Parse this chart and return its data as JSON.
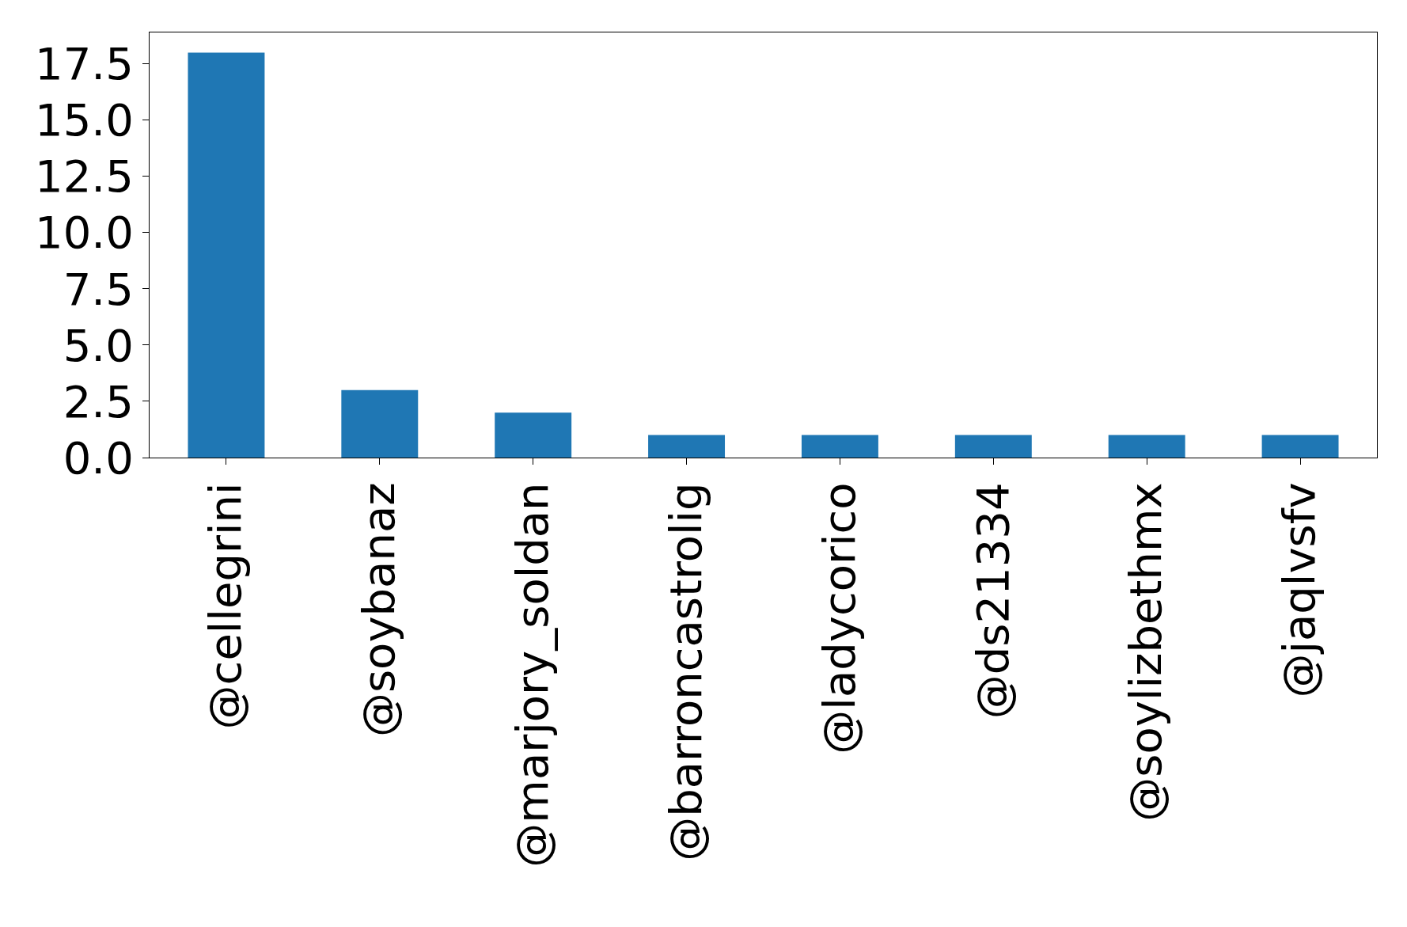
{
  "chart_data": {
    "type": "bar",
    "categories": [
      "@cellegrini",
      "@soybanaz",
      "@marjory_soldan",
      "@barroncastrolig",
      "@ladycorico",
      "@ds21334",
      "@soylizbethmx",
      "@jaqlvsfv"
    ],
    "values": [
      18,
      3,
      2,
      1,
      1,
      1,
      1,
      1
    ],
    "color": "#1f77b4",
    "ylim": [
      0,
      18.9
    ],
    "yticks": [
      {
        "value": 0,
        "label": "0.0"
      },
      {
        "value": 2.5,
        "label": "2.5"
      },
      {
        "value": 5,
        "label": "5.0"
      },
      {
        "value": 7.5,
        "label": "7.5"
      },
      {
        "value": 10,
        "label": "10.0"
      },
      {
        "value": 12.5,
        "label": "12.5"
      },
      {
        "value": 15,
        "label": "15.0"
      },
      {
        "value": 17.5,
        "label": "17.5"
      }
    ],
    "legend": false
  }
}
